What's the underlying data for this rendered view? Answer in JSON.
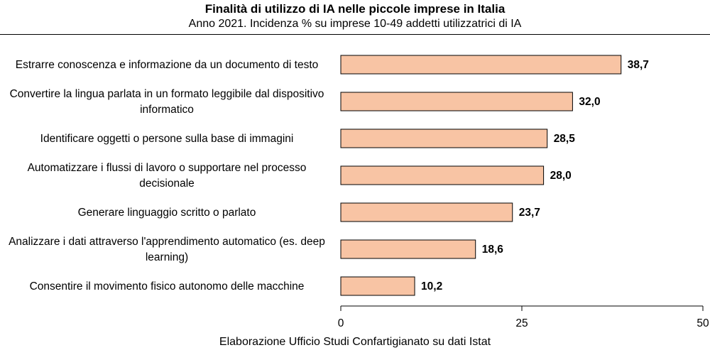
{
  "chart_data": {
    "type": "bar",
    "orientation": "horizontal",
    "title": "Finalità di utilizzo di IA nelle piccole imprese in Italia",
    "subtitle": "Anno 2021. Incidenza % su imprese 10-49 addetti utilizzatrici di IA",
    "categories": [
      [
        "Estrarre conoscenza e informazione da un documento di testo"
      ],
      [
        "Convertire la lingua parlata in un formato leggibile dal dispositivo",
        "informatico"
      ],
      [
        "Identificare oggetti o persone sulla base di immagini"
      ],
      [
        "Automatizzare i flussi di lavoro o supportare nel processo",
        "decisionale"
      ],
      [
        "Generare linguaggio scritto o parlato"
      ],
      [
        "Analizzare i dati attraverso l'apprendimento automatico (es. deep",
        "learning)"
      ],
      [
        "Consentire il movimento fisico autonomo delle macchine"
      ]
    ],
    "values": [
      38.7,
      32.0,
      28.5,
      28.0,
      23.7,
      18.6,
      10.2
    ],
    "value_labels": [
      "38,7",
      "32,0",
      "28,5",
      "28,0",
      "23,7",
      "18,6",
      "10,2"
    ],
    "xlim": [
      0,
      50
    ],
    "ticks": [
      0,
      25,
      50
    ],
    "tick_labels": [
      "0",
      "25",
      "50"
    ],
    "grid": false,
    "legend": "none",
    "bar_color": "#f8c4a4",
    "bar_edge_color": "#000000",
    "source": "Elaborazione Ufficio Studi Confartigianato su dati Istat"
  }
}
